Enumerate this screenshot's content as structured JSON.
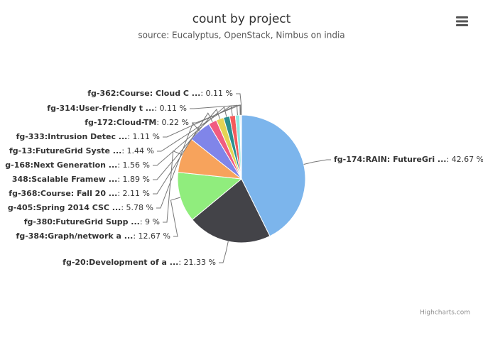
{
  "chart_data": {
    "type": "pie",
    "title": "count by project",
    "subtitle": "source: Eucalyptus, OpenStack, Nimbus on india",
    "credits": "Highcharts.com",
    "label_separator": ": ",
    "categories": [
      "fg-174:RAIN: FutureGri ...",
      "fg-20:Development of a ...",
      "fg-384:Graph/network a ...",
      "fg-380:FutureGrid Supp ...",
      "g-405:Spring 2014 CSC ...",
      "fg-368:Course: Fall 20 ...",
      "348:Scalable Framew ...",
      "g-168:Next Generation ...",
      "fg-13:FutureGrid Syste ...",
      "fg-333:Intrusion Detec ...",
      "fg-172:Cloud-TM",
      "fg-314:User-friendly t ...",
      "fg-362:Course: Cloud C ..."
    ],
    "values": [
      42.67,
      21.33,
      12.67,
      9,
      5.78,
      2.11,
      1.89,
      1.56,
      1.44,
      1.11,
      0.22,
      0.11,
      0.11
    ],
    "value_labels": [
      "42.67 %",
      "21.33 %",
      "12.67 %",
      "9 %",
      "5.78 %",
      "2.11 %",
      "1.89 %",
      "1.56 %",
      "1.44 %",
      "1.11 %",
      "0.22 %",
      "0.11 %",
      "0.11 %"
    ],
    "colors": [
      "#7cb5ec",
      "#434348",
      "#90ed7d",
      "#f7a35c",
      "#8085e9",
      "#f15c80",
      "#e4d354",
      "#2b908f",
      "#f45b5b",
      "#91e8e1",
      "#7cb5ec",
      "#434348",
      "#90ed7d"
    ]
  }
}
